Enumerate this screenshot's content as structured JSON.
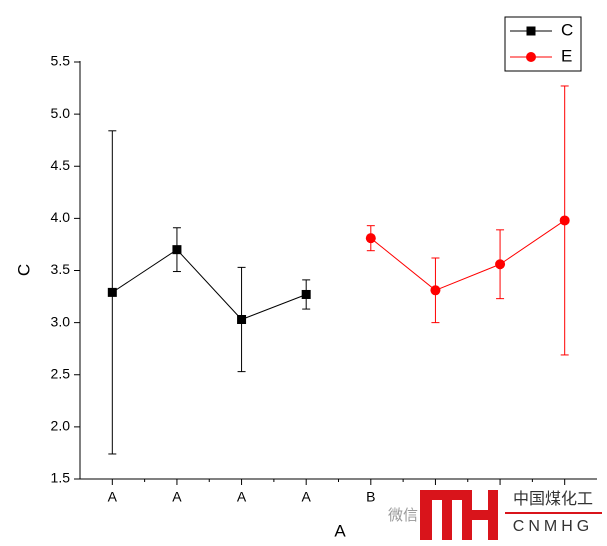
{
  "chart_data": {
    "type": "line",
    "xlabel": "A",
    "ylabel": "C",
    "categories": [
      "A",
      "A",
      "A",
      "A",
      "B",
      null,
      null,
      null
    ],
    "series": [
      {
        "name": "C",
        "color": "#000000",
        "marker": "square",
        "values": [
          3.29,
          3.7,
          3.03,
          3.27,
          null,
          null,
          null,
          null
        ],
        "errors": [
          1.55,
          0.21,
          0.5,
          0.14,
          null,
          null,
          null,
          null
        ]
      },
      {
        "name": "E",
        "color": "#ff0000",
        "marker": "circle",
        "values": [
          null,
          null,
          null,
          null,
          3.81,
          3.31,
          3.56,
          3.98
        ],
        "errors": [
          null,
          null,
          null,
          null,
          0.12,
          0.31,
          0.33,
          1.29
        ]
      }
    ],
    "ylim": [
      1.5,
      5.5
    ],
    "yticks": [
      1.5,
      {
        "value": 2,
        "label": "2.0"
      },
      2.5,
      {
        "value": 3,
        "label": "3.0"
      },
      3.5,
      {
        "value": 4,
        "label": "4.0"
      },
      4.5,
      {
        "value": 5,
        "label": "5.0"
      },
      5.5
    ],
    "legend": "top-right",
    "watermark": [
      "微信",
      "中国煤化工",
      "CNMHG"
    ]
  }
}
